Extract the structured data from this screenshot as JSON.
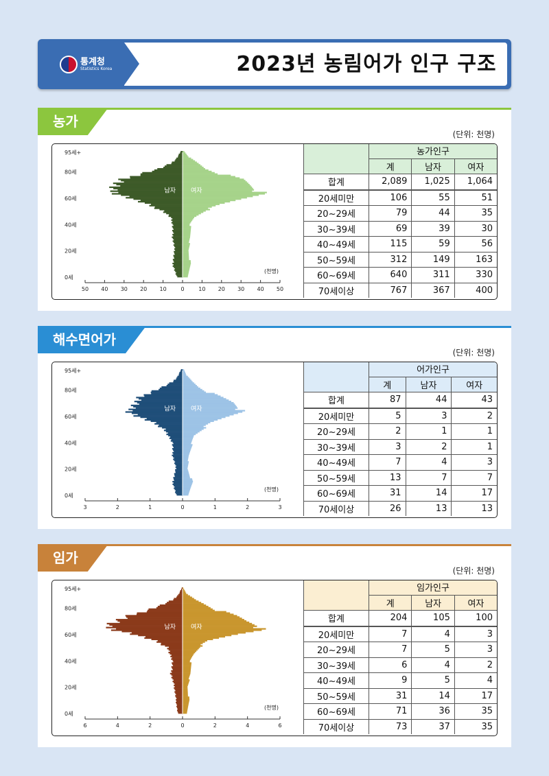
{
  "header": {
    "agency": "통계청",
    "agency_en": "Statistics Korea",
    "title": "2023년 농림어가 인구 구조"
  },
  "unit_label": "(단위: 천명)",
  "panels": [
    {
      "tab": "농가",
      "tab_color": "#8cc63e",
      "header_bg": "#d9efd9",
      "male_color": "#3d5a28",
      "female_color": "#a6d38a",
      "table": {
        "group_header": "농가인구",
        "col_headers": [
          "계",
          "남자",
          "여자"
        ],
        "rows": [
          {
            "label": "합계",
            "total": "2,089",
            "male": "1,025",
            "female": "1,064"
          },
          {
            "label": "20세미만",
            "total": "106",
            "male": "55",
            "female": "51"
          },
          {
            "label": "20~29세",
            "total": "79",
            "male": "44",
            "female": "35"
          },
          {
            "label": "30~39세",
            "total": "69",
            "male": "39",
            "female": "30"
          },
          {
            "label": "40~49세",
            "total": "115",
            "male": "59",
            "female": "56"
          },
          {
            "label": "50~59세",
            "total": "312",
            "male": "149",
            "female": "163"
          },
          {
            "label": "60~69세",
            "total": "640",
            "male": "311",
            "female": "330"
          },
          {
            "label": "70세이상",
            "total": "767",
            "male": "367",
            "female": "400"
          }
        ]
      }
    },
    {
      "tab": "해수면어가",
      "tab_color": "#2a8ed4",
      "header_bg": "#dcebf8",
      "male_color": "#1f4e79",
      "female_color": "#9dc3e6",
      "table": {
        "group_header": "어가인구",
        "col_headers": [
          "계",
          "남자",
          "여자"
        ],
        "rows": [
          {
            "label": "합계",
            "total": "87",
            "male": "44",
            "female": "43"
          },
          {
            "label": "20세미만",
            "total": "5",
            "male": "3",
            "female": "2"
          },
          {
            "label": "20~29세",
            "total": "2",
            "male": "1",
            "female": "1"
          },
          {
            "label": "30~39세",
            "total": "3",
            "male": "2",
            "female": "1"
          },
          {
            "label": "40~49세",
            "total": "7",
            "male": "4",
            "female": "3"
          },
          {
            "label": "50~59세",
            "total": "13",
            "male": "7",
            "female": "7"
          },
          {
            "label": "60~69세",
            "total": "31",
            "male": "14",
            "female": "17"
          },
          {
            "label": "70세이상",
            "total": "26",
            "male": "13",
            "female": "13"
          }
        ]
      }
    },
    {
      "tab": "임가",
      "tab_color": "#c8823a",
      "header_bg": "#fbeed2",
      "male_color": "#8b3a1a",
      "female_color": "#c9962e",
      "table": {
        "group_header": "임가인구",
        "col_headers": [
          "계",
          "남자",
          "여자"
        ],
        "rows": [
          {
            "label": "합계",
            "total": "204",
            "male": "105",
            "female": "100"
          },
          {
            "label": "20세미만",
            "total": "7",
            "male": "4",
            "female": "3"
          },
          {
            "label": "20~29세",
            "total": "7",
            "male": "5",
            "female": "3"
          },
          {
            "label": "30~39세",
            "total": "6",
            "male": "4",
            "female": "2"
          },
          {
            "label": "40~49세",
            "total": "9",
            "male": "5",
            "female": "4"
          },
          {
            "label": "50~59세",
            "total": "31",
            "male": "14",
            "female": "17"
          },
          {
            "label": "60~69세",
            "total": "71",
            "male": "36",
            "female": "35"
          },
          {
            "label": "70세이상",
            "total": "73",
            "male": "37",
            "female": "35"
          }
        ]
      }
    }
  ],
  "chart_data": [
    {
      "type": "bar",
      "orientation": "horizontal-pyramid",
      "y_tick_labels": [
        "0세",
        "20세",
        "40세",
        "60세",
        "80세",
        "95세+"
      ],
      "x_tick_labels": [
        "50",
        "40",
        "30",
        "20",
        "10",
        "0",
        "10",
        "20",
        "30",
        "40",
        "50"
      ],
      "unit": "(천명)",
      "male_label": "남자",
      "female_label": "여자",
      "xlim": [
        -50,
        50
      ],
      "age_anchors": [
        0,
        10,
        20,
        30,
        40,
        45,
        50,
        55,
        60,
        63,
        66,
        70,
        74,
        78,
        82,
        86,
        90,
        95
      ],
      "male": [
        3,
        5,
        4,
        5,
        5,
        6,
        10,
        18,
        27,
        33,
        37,
        34,
        30,
        22,
        12,
        6,
        3,
        1
      ],
      "female": [
        3,
        4,
        3,
        4,
        4,
        6,
        11,
        20,
        32,
        39,
        40,
        35,
        30,
        20,
        12,
        8,
        4,
        1
      ]
    },
    {
      "type": "bar",
      "orientation": "horizontal-pyramid",
      "y_tick_labels": [
        "0세",
        "20세",
        "40세",
        "60세",
        "80세",
        "95세+"
      ],
      "x_tick_labels": [
        "3",
        "2",
        "1",
        "0",
        "1",
        "2",
        "3"
      ],
      "unit": "(천명)",
      "male_label": "남자",
      "female_label": "여자",
      "xlim": [
        -3,
        3
      ],
      "age_anchors": [
        0,
        10,
        20,
        30,
        40,
        45,
        50,
        55,
        60,
        63,
        66,
        70,
        74,
        78,
        82,
        86,
        90,
        95
      ],
      "male": [
        0.2,
        0.3,
        0.2,
        0.3,
        0.3,
        0.45,
        0.55,
        0.9,
        1.4,
        1.6,
        1.6,
        1.4,
        1.3,
        1.0,
        0.6,
        0.3,
        0.15,
        0.05
      ],
      "female": [
        0.2,
        0.3,
        0.15,
        0.2,
        0.3,
        0.35,
        0.6,
        0.9,
        1.4,
        1.7,
        1.85,
        1.6,
        1.2,
        0.8,
        0.5,
        0.3,
        0.15,
        0.05
      ]
    },
    {
      "type": "bar",
      "orientation": "horizontal-pyramid",
      "y_tick_labels": [
        "0세",
        "20세",
        "40세",
        "60세",
        "80세",
        "95세+"
      ],
      "x_tick_labels": [
        "6",
        "4",
        "2",
        "0",
        "2",
        "4",
        "6"
      ],
      "unit": "(천명)",
      "male_label": "남자",
      "female_label": "여자",
      "xlim": [
        -6,
        6
      ],
      "age_anchors": [
        0,
        10,
        20,
        30,
        40,
        45,
        50,
        55,
        60,
        63,
        66,
        70,
        74,
        78,
        82,
        86,
        90,
        95
      ],
      "male": [
        0.3,
        0.4,
        0.5,
        0.7,
        0.6,
        0.8,
        0.9,
        1.7,
        3.0,
        4.0,
        4.8,
        4.0,
        3.2,
        2.2,
        1.3,
        0.6,
        0.25,
        0.05
      ],
      "female": [
        0.3,
        0.4,
        0.3,
        0.5,
        0.5,
        0.7,
        1.0,
        1.6,
        3.3,
        4.5,
        5.0,
        4.0,
        3.2,
        2.2,
        1.5,
        0.8,
        0.3,
        0.05
      ]
    }
  ]
}
